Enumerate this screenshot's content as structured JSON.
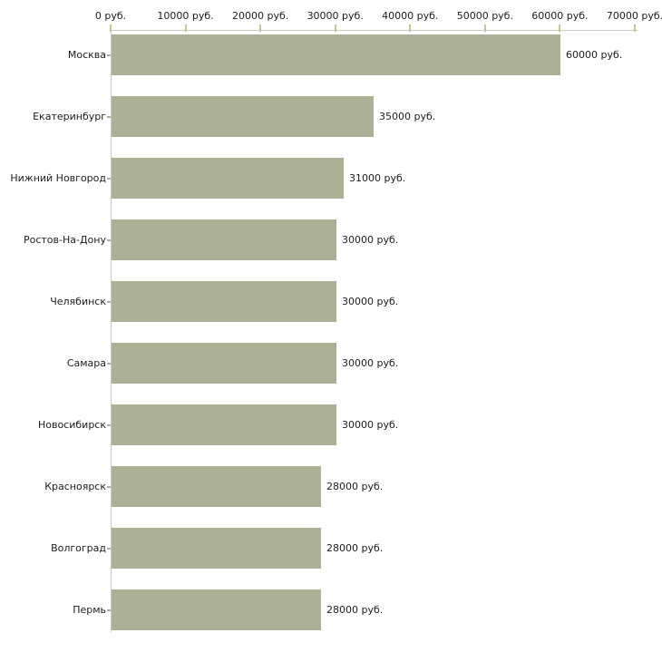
{
  "chart_data": {
    "type": "bar",
    "orientation": "horizontal",
    "title": "",
    "categories": [
      "Москва",
      "Екатеринбург",
      "Нижний Новгород",
      "Ростов-На-Дону",
      "Челябинск",
      "Самара",
      "Новосибирск",
      "Красноярск",
      "Волгоград",
      "Пермь"
    ],
    "values": [
      60000,
      35000,
      31000,
      30000,
      30000,
      30000,
      30000,
      28000,
      28000,
      28000
    ],
    "value_labels": [
      "60000 руб.",
      "35000 руб.",
      "31000 руб.",
      "30000 руб.",
      "30000 руб.",
      "30000 руб.",
      "30000 руб.",
      "28000 руб.",
      "28000 руб.",
      "28000 руб."
    ],
    "x_axis": {
      "position": "top",
      "min": 0,
      "max": 70000,
      "ticks": [
        0,
        10000,
        20000,
        30000,
        40000,
        50000,
        60000,
        70000
      ],
      "tick_labels": [
        "0 руб.",
        "10000 руб.",
        "20000 руб.",
        "30000 руб.",
        "40000 руб.",
        "50000 руб.",
        "60000 руб.",
        "70000 руб."
      ]
    },
    "grid": false,
    "legend": false,
    "colors": {
      "bar": "#acb196",
      "axis_line": "#c9c9c9",
      "x_tick": "#c3c68e",
      "y_tick": "#b3ae93",
      "text": "#1c1c1c"
    }
  }
}
